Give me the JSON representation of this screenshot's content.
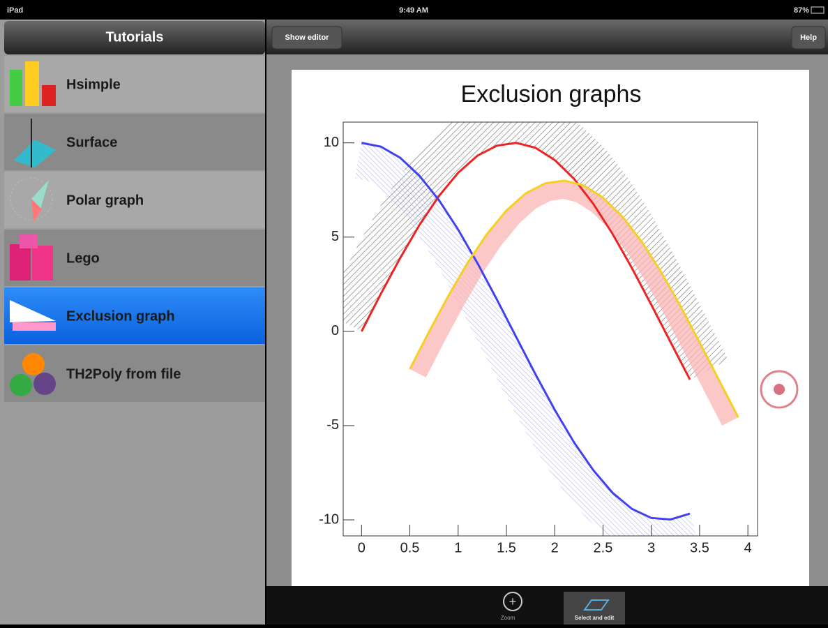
{
  "status_bar": {
    "left": "iPad",
    "time": "9:49 AM",
    "battery": "87%"
  },
  "sidebar": {
    "title": "Tutorials",
    "items": [
      "Hsimple",
      "Surface",
      "Polar graph",
      "Lego",
      "Exclusion graph",
      "TH2Poly from file"
    ],
    "selected": 4
  },
  "toolbar": {
    "left_button": "Show editor",
    "right_button": "Help"
  },
  "bottom_bar": {
    "items": [
      "Zoom",
      "Select and edit"
    ]
  },
  "chart_data": {
    "type": "line",
    "title": "Exclusion graphs",
    "series": [
      {
        "color": "#ee2222",
        "band_color": "#555555",
        "x": [
          0,
          0.2,
          0.4,
          0.6,
          0.8,
          1.0,
          1.2,
          1.4,
          1.6,
          1.8,
          2.0,
          2.2,
          2.4,
          2.6,
          2.8,
          3.0,
          3.2,
          3.4
        ],
        "values": [
          0,
          1.99,
          3.89,
          5.65,
          7.17,
          8.41,
          9.32,
          9.85,
          10.0,
          9.74,
          9.09,
          8.09,
          6.76,
          5.16,
          3.35,
          1.41,
          -0.58,
          -2.56
        ]
      },
      {
        "color": "#4040ee",
        "band_color": "#8080ee",
        "x": [
          0,
          0.2,
          0.4,
          0.6,
          0.8,
          1.0,
          1.2,
          1.4,
          1.6,
          1.8,
          2.0,
          2.2,
          2.4,
          2.6,
          2.8,
          3.0,
          3.2,
          3.4
        ],
        "values": [
          10,
          9.8,
          9.21,
          8.25,
          6.97,
          5.4,
          3.62,
          1.7,
          -0.29,
          -2.27,
          -4.16,
          -5.89,
          -7.37,
          -8.57,
          -9.42,
          -9.9,
          -9.98,
          -9.67
        ]
      },
      {
        "color": "#f5d020",
        "band_color": "#f9b4b4",
        "x": [
          0.5,
          0.7,
          0.9,
          1.1,
          1.3,
          1.5,
          1.7,
          1.9,
          2.1,
          2.3,
          2.5,
          2.7,
          2.9,
          3.1,
          3.3,
          3.5,
          3.7,
          3.9
        ],
        "values": [
          -2,
          -0.01,
          1.89,
          3.65,
          5.17,
          6.41,
          7.32,
          7.85,
          8.0,
          7.74,
          7.09,
          6.09,
          4.76,
          3.16,
          1.35,
          -0.59,
          -2.58,
          -4.56
        ]
      }
    ],
    "xlim": [
      -0.19,
      4.1
    ],
    "ylim": [
      -10.85,
      11.1
    ],
    "xticks": [
      0,
      0.5,
      1,
      1.5,
      2,
      2.5,
      3,
      3.5,
      4
    ],
    "yticks": [
      -10,
      -5,
      0,
      5,
      10
    ]
  }
}
